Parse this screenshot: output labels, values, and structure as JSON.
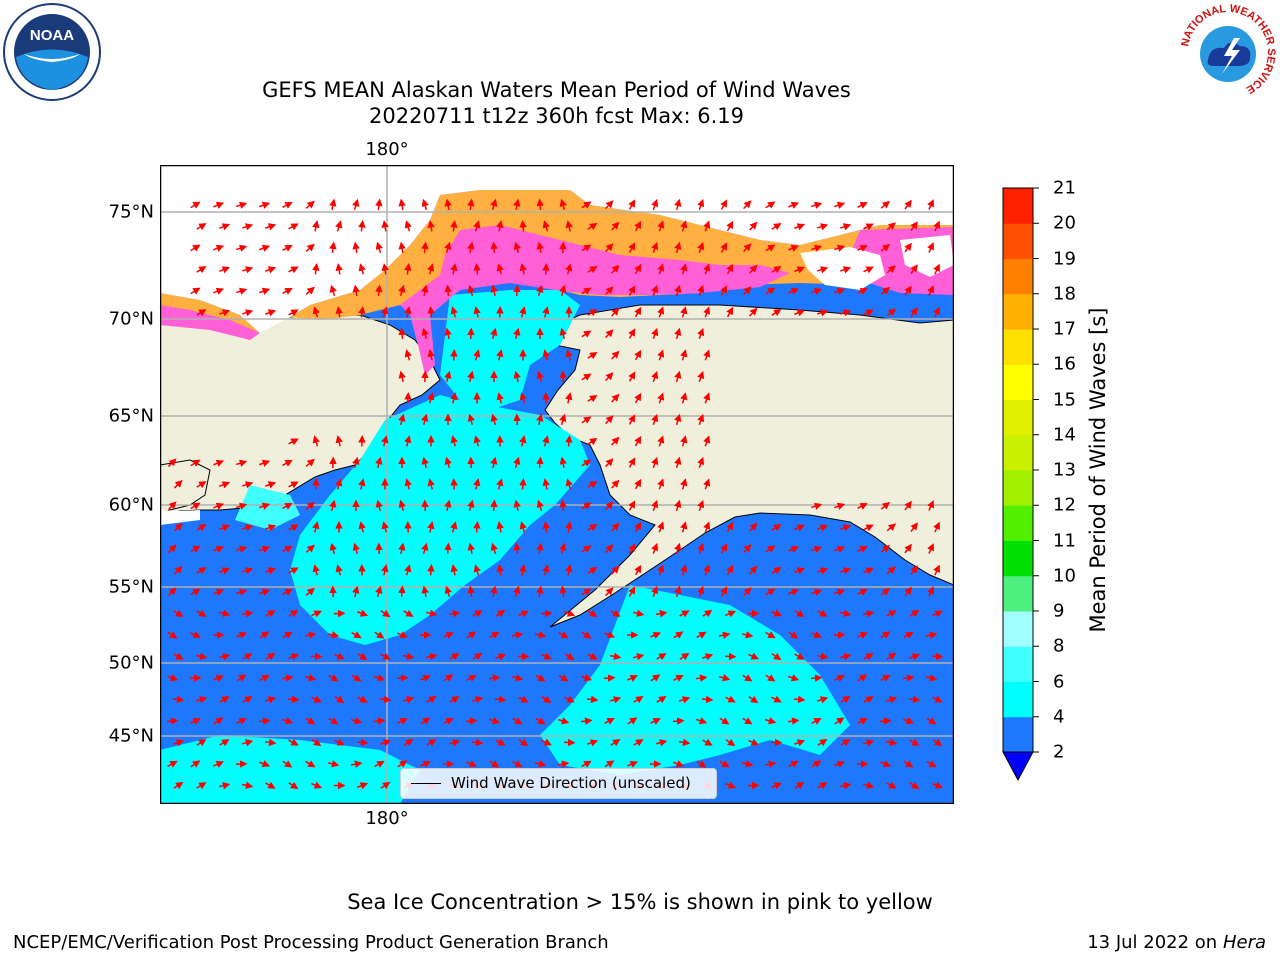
{
  "title": {
    "line1": "GEFS MEAN Alaskan Waters Mean Period of Wind Waves",
    "line2": "20220711 t12z 360h fcst   Max: 6.19"
  },
  "map": {
    "lon_label": "180°",
    "lat_labels": [
      "75°N",
      "70°N",
      "65°N",
      "60°N",
      "55°N",
      "50°N",
      "45°N"
    ],
    "legend_label": "Wind Wave Direction (unscaled)",
    "colors": {
      "ocean_base": "#1e78ff",
      "ocean_light": "#00ffff",
      "land": "#efefdc",
      "ice_pink": "#ff60d8",
      "ice_orange": "#ffb040",
      "arrow": "#ff0000",
      "grid": "#b0b0b0"
    }
  },
  "colorbar": {
    "label": "Mean Period of Wind Waves [s]",
    "ticks": [
      "2",
      "4",
      "6",
      "8",
      "9",
      "10",
      "11",
      "12",
      "13",
      "14",
      "15",
      "16",
      "17",
      "18",
      "19",
      "20",
      "21"
    ],
    "colors": [
      "#1e78ff",
      "#00ffff",
      "#40ffff",
      "#a0ffff",
      "#50f080",
      "#00e000",
      "#50f000",
      "#a0f000",
      "#c8f000",
      "#e0f000",
      "#ffff00",
      "#ffe000",
      "#ffb000",
      "#ff8000",
      "#ff5000",
      "#ff2000"
    ],
    "under_color": "#0000ff"
  },
  "notes": {
    "ice": "Sea Ice Concentration > 15% is shown in pink to yellow",
    "footer_left": "NCEP/EMC/Verification Post Processing Product Generation Branch",
    "footer_date": "13 Jul 2022 on ",
    "footer_machine": "Hera"
  },
  "logos": {
    "noaa_text": "NOAA",
    "nws_text": "NATIONAL WEATHER SERVICE"
  }
}
